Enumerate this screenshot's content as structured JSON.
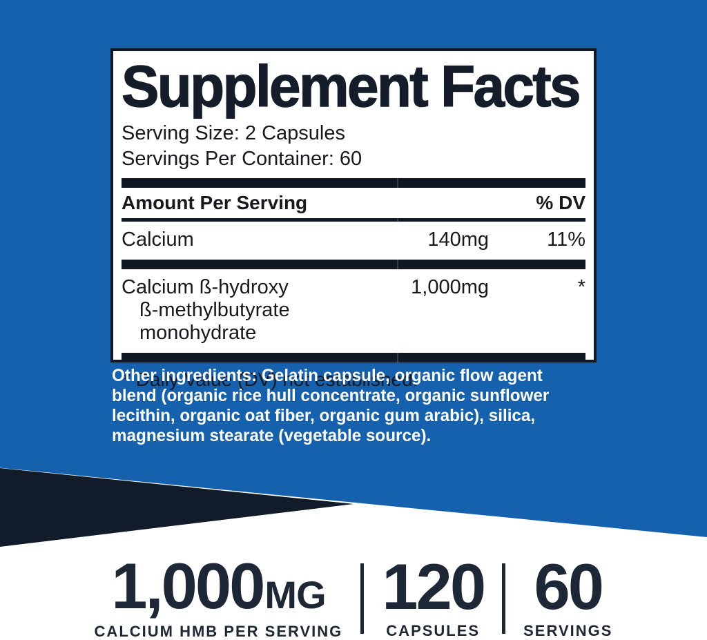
{
  "label": {
    "title": "Supplement Facts",
    "serving_size": "Serving Size: 2 Capsules",
    "servings_per_container": "Servings Per Container: 60",
    "header": {
      "amount_col": "Amount Per Serving",
      "dv_col": "% DV"
    },
    "rows": [
      {
        "name": "Calcium",
        "amount": "140mg",
        "dv": "11%"
      },
      {
        "name": "Calcium ß-hydroxy",
        "name_line2": "ß-methylbutyrate monohydrate",
        "amount": "1,000mg",
        "dv": "*"
      }
    ],
    "footnote": "* Daily Value (DV) not established."
  },
  "other_ingredients": "Other ingredients: Gelatin capsule, organic flow agent blend (organic rice hull concentrate, organic sunflower lecithin, organic oat fiber, organic gum arabic), silica, magnesium stearate (vegetable source).",
  "stats": {
    "dose": {
      "value": "1,000",
      "unit": "MG",
      "label": "CALCIUM HMB PER SERVING"
    },
    "capsules": {
      "value": "120",
      "label": "CAPSULES"
    },
    "servings": {
      "value": "60",
      "label": "SERVINGS"
    }
  },
  "colors": {
    "brand_blue": "#1561ae",
    "dark_navy": "#111b2a",
    "panel_text": "#17191f",
    "white": "#ffffff"
  }
}
